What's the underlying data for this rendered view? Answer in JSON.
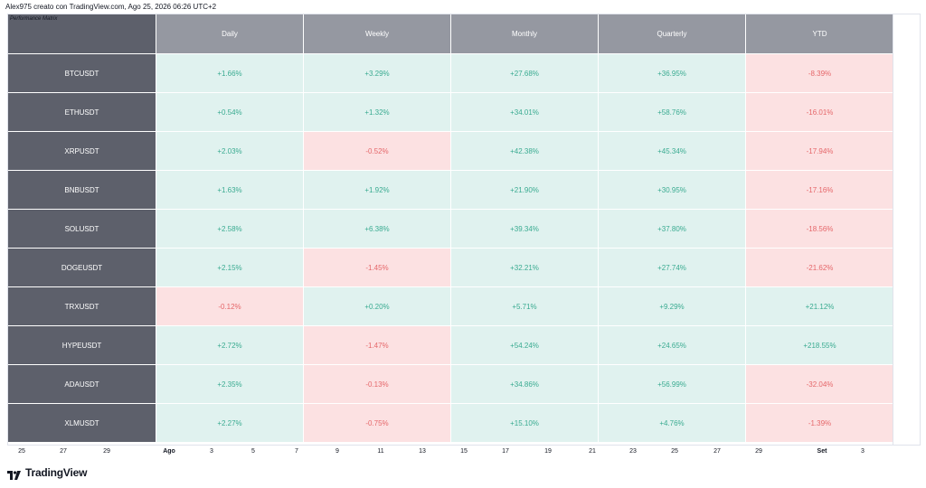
{
  "caption": "Alex975 creato con TradingView.com, Ago 25, 2026 06:26 UTC+2",
  "matrix": {
    "title": "Performance Matrix",
    "columns": [
      "Daily",
      "Weekly",
      "Monthly",
      "Quarterly",
      "YTD"
    ],
    "rows": [
      {
        "symbol": "BTCUSDT",
        "values": [
          "+1.66%",
          "+3.29%",
          "+27.68%",
          "+36.95%",
          "-8.39%"
        ]
      },
      {
        "symbol": "ETHUSDT",
        "values": [
          "+0.54%",
          "+1.32%",
          "+34.01%",
          "+58.76%",
          "-16.01%"
        ]
      },
      {
        "symbol": "XRPUSDT",
        "values": [
          "+2.03%",
          "-0.52%",
          "+42.38%",
          "+45.34%",
          "-17.94%"
        ]
      },
      {
        "symbol": "BNBUSDT",
        "values": [
          "+1.63%",
          "+1.92%",
          "+21.90%",
          "+30.95%",
          "-17.16%"
        ]
      },
      {
        "symbol": "SOLUSDT",
        "values": [
          "+2.58%",
          "+6.38%",
          "+39.34%",
          "+37.80%",
          "-18.56%"
        ]
      },
      {
        "symbol": "DOGEUSDT",
        "values": [
          "+2.15%",
          "-1.45%",
          "+32.21%",
          "+27.74%",
          "-21.62%"
        ]
      },
      {
        "symbol": "TRXUSDT",
        "values": [
          "-0.12%",
          "+0.20%",
          "+5.71%",
          "+9.29%",
          "+21.12%"
        ]
      },
      {
        "symbol": "HYPEUSDT",
        "values": [
          "+2.72%",
          "-1.47%",
          "+54.24%",
          "+24.65%",
          "+218.55%"
        ]
      },
      {
        "symbol": "ADAUSDT",
        "values": [
          "+2.35%",
          "-0.13%",
          "+34.86%",
          "+56.99%",
          "-32.04%"
        ]
      },
      {
        "symbol": "XLMUSDT",
        "values": [
          "+2.27%",
          "-0.75%",
          "+15.10%",
          "+4.76%",
          "-1.39%"
        ]
      }
    ]
  },
  "time_axis": {
    "ticks": [
      {
        "label": "25",
        "bold": false
      },
      {
        "label": "27",
        "bold": false
      },
      {
        "label": "29",
        "bold": false
      },
      {
        "label": "Ago",
        "bold": true
      },
      {
        "label": "3",
        "bold": false
      },
      {
        "label": "5",
        "bold": false
      },
      {
        "label": "7",
        "bold": false
      },
      {
        "label": "9",
        "bold": false
      },
      {
        "label": "11",
        "bold": false
      },
      {
        "label": "13",
        "bold": false
      },
      {
        "label": "15",
        "bold": false
      },
      {
        "label": "17",
        "bold": false
      },
      {
        "label": "19",
        "bold": false
      },
      {
        "label": "21",
        "bold": false
      },
      {
        "label": "23",
        "bold": false
      },
      {
        "label": "25",
        "bold": false
      },
      {
        "label": "27",
        "bold": false
      },
      {
        "label": "29",
        "bold": false
      },
      {
        "label": "Set",
        "bold": true
      },
      {
        "label": "3",
        "bold": false
      }
    ]
  },
  "brand": {
    "name": "TradingView",
    "icon": "tradingview-logo-icon"
  },
  "colors": {
    "positive_bg": "#e0f2ef",
    "positive_text": "#3aab91",
    "negative_bg": "#fce1e2",
    "negative_text": "#e5676a",
    "symbol_bg": "#5d606b",
    "header_bg": "#9598a1"
  }
}
